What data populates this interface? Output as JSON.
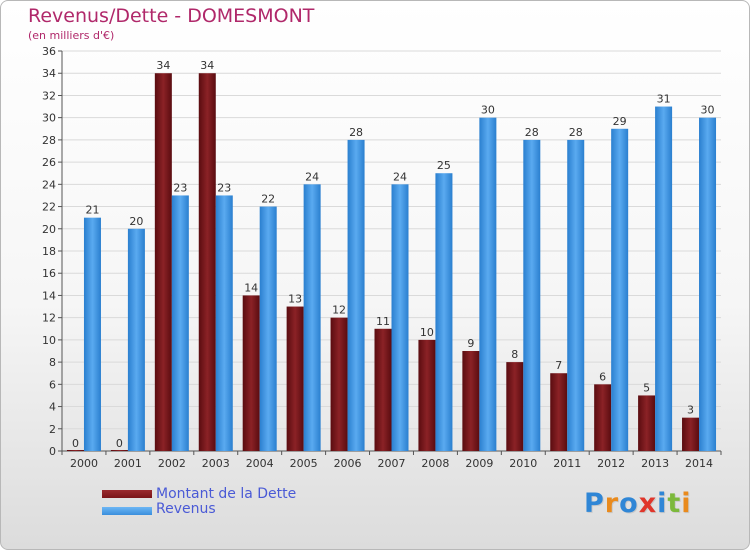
{
  "chart_data": {
    "type": "bar",
    "title": "Revenus/Dette - DOMESMONT",
    "subtitle": "(en milliers d'€)",
    "categories": [
      "2000",
      "2001",
      "2002",
      "2003",
      "2004",
      "2005",
      "2006",
      "2007",
      "2008",
      "2009",
      "2010",
      "2011",
      "2012",
      "2013",
      "2014"
    ],
    "series": [
      {
        "name": "Montant de la Dette",
        "color": "#7a1418",
        "values": [
          0,
          0,
          34,
          34,
          14,
          13,
          12,
          11,
          10,
          9,
          8,
          7,
          6,
          5,
          3
        ]
      },
      {
        "name": "Revenus",
        "color": "#3a8fdc",
        "values": [
          21,
          20,
          23,
          23,
          22,
          24,
          28,
          24,
          25,
          30,
          28,
          28,
          29,
          31,
          30
        ]
      }
    ],
    "ylim": [
      0,
      36
    ],
    "yticks": [
      0,
      2,
      4,
      6,
      8,
      10,
      12,
      14,
      16,
      18,
      20,
      22,
      24,
      26,
      28,
      30,
      32,
      34,
      36
    ],
    "grid": true,
    "legend_position": "bottom-left"
  },
  "logo": {
    "text": "Proxiti",
    "letters": [
      "P",
      "r",
      "o",
      "x",
      "i",
      "t",
      "i"
    ],
    "colors": [
      "#2f86d6",
      "#e98a1c",
      "#2f86d6",
      "#e0362b",
      "#2f86d6",
      "#7cb93b",
      "#e98a1c"
    ]
  }
}
